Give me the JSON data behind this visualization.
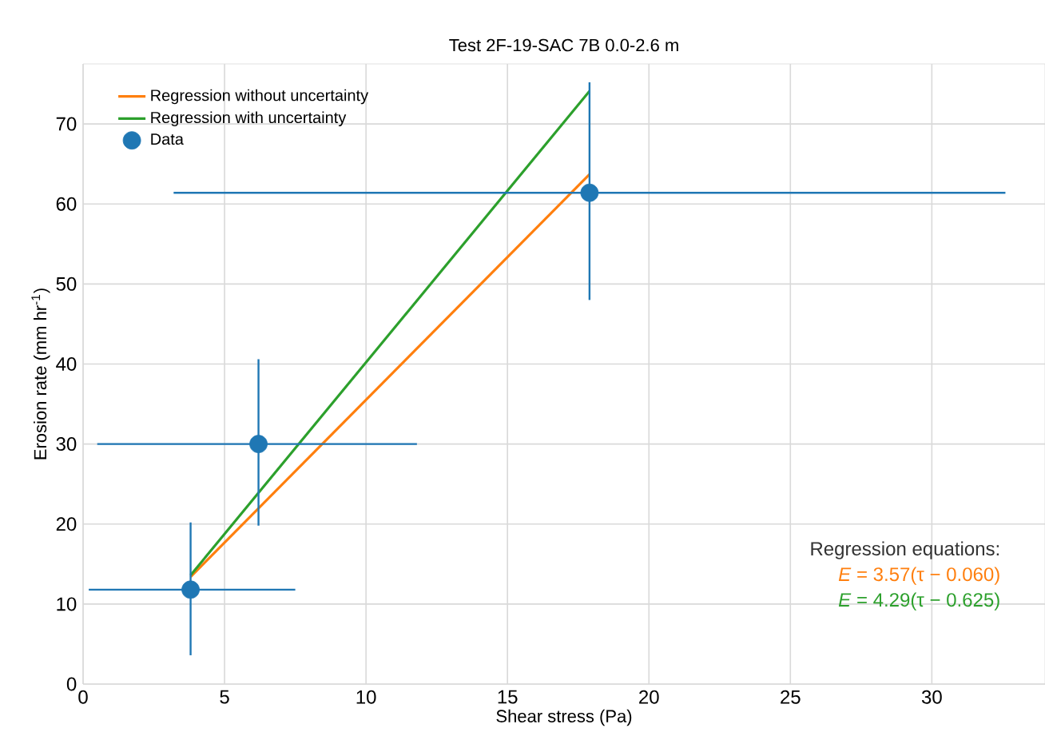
{
  "chart_data": {
    "type": "line",
    "title": "Test 2F-19-SAC 7B 0.0-2.6 m",
    "xlabel": "Shear stress (Pa)",
    "ylabel": "Erosion rate (mm hr$^{-1}$)",
    "xlim": [
      0,
      34
    ],
    "ylim": [
      0,
      77.5
    ],
    "xticks": [
      0,
      5,
      10,
      15,
      20,
      25,
      30
    ],
    "yticks": [
      0,
      10,
      20,
      30,
      40,
      50,
      60,
      70
    ],
    "grid": true,
    "legend": "top left",
    "series": [
      {
        "name": "Regression without uncertainty",
        "color": "#ff7f0e",
        "marker": "none",
        "x": [
          3.8,
          17.9
        ],
        "values": [
          13.4,
          63.7
        ]
      },
      {
        "name": "Regression with uncertainty",
        "color": "#2ca02c",
        "marker": "none",
        "x": [
          3.8,
          17.9
        ],
        "values": [
          13.6,
          74.1
        ]
      },
      {
        "name": "Data",
        "type": "scatter",
        "color": "#1f77b4",
        "marker": "circle",
        "x": [
          3.8,
          6.2,
          17.9
        ],
        "values": [
          11.8,
          30,
          61.4
        ],
        "errors": [
          [
            3.6,
            20.2
          ],
          [
            19.8,
            40.6
          ],
          [
            48,
            75.2
          ]
        ],
        "xerrors": [
          [
            0.2,
            7.5
          ],
          [
            0.5,
            11.8
          ],
          [
            3.2,
            32.6
          ]
        ]
      }
    ],
    "annotations": [
      "Regression equations:",
      "*E* = 3.57(τ − 0.060)",
      "*E* = 4.29(τ − 0.625)"
    ]
  }
}
